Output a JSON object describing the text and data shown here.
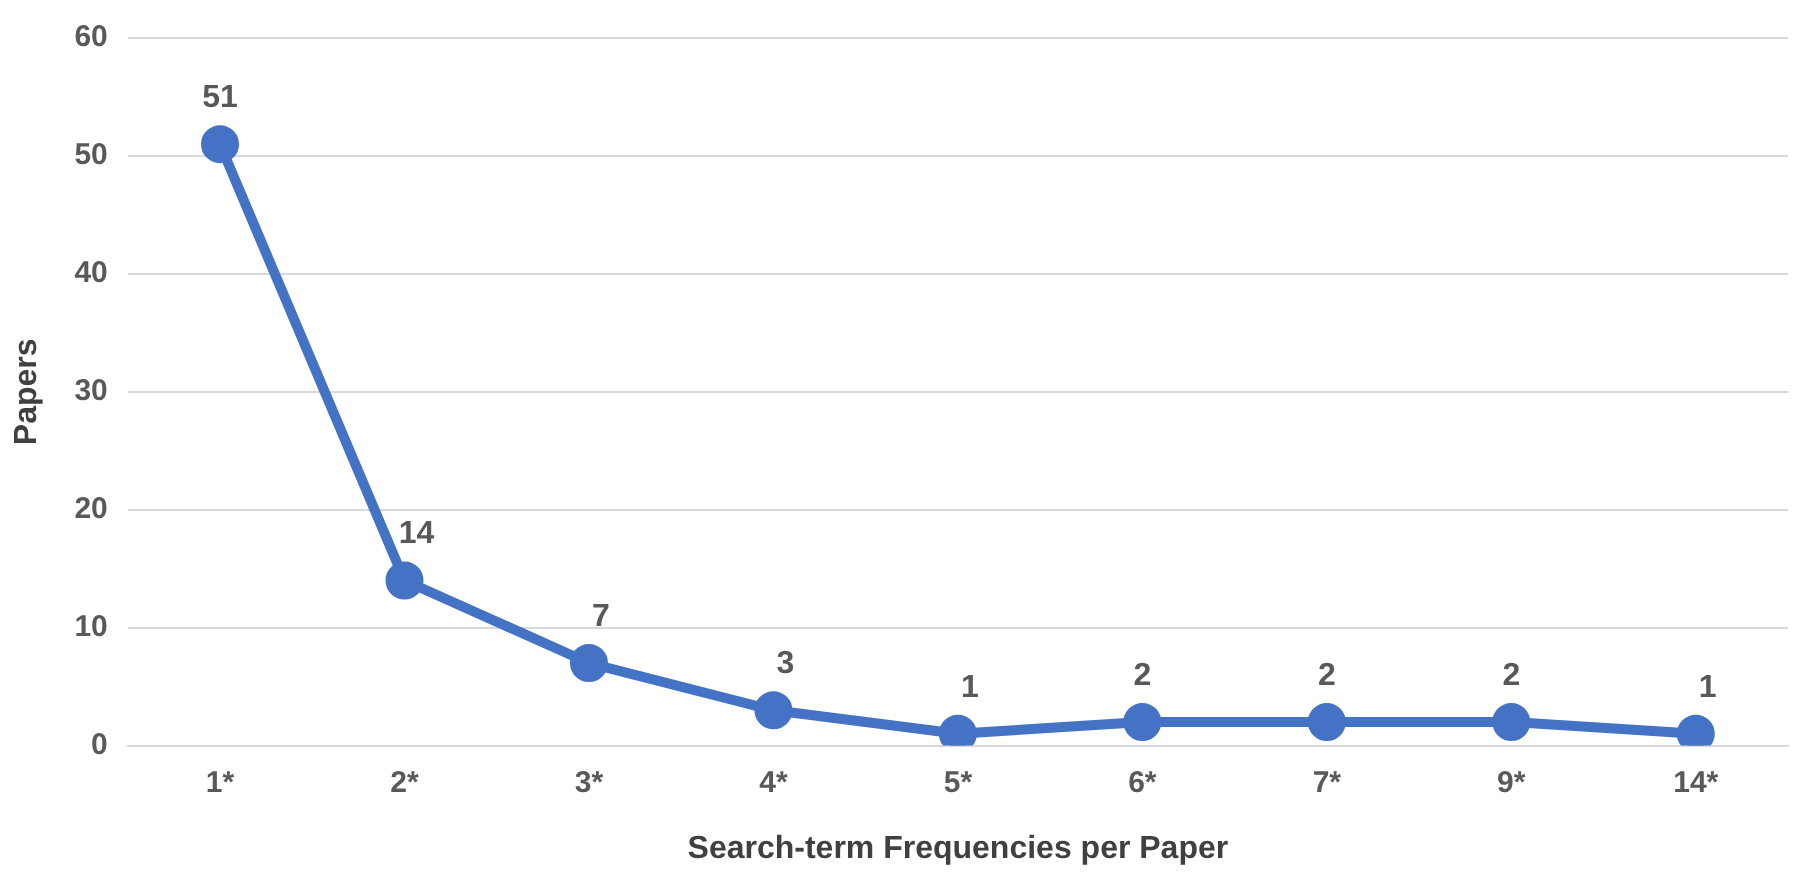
{
  "chart_data": {
    "type": "line",
    "xlabel": "Search-term Frequencies per Paper",
    "ylabel": "Papers",
    "categories": [
      "1*",
      "2*",
      "3*",
      "4*",
      "5*",
      "6*",
      "7*",
      "9*",
      "14*"
    ],
    "series": [
      {
        "color": "#4472c4",
        "values": [
          51,
          14,
          7,
          3,
          1,
          2,
          2,
          2,
          1
        ]
      }
    ],
    "ylim": [
      0,
      60
    ],
    "yticks": [
      0,
      10,
      20,
      30,
      40,
      50,
      60
    ],
    "grid": "y",
    "legend": false,
    "marker": "circle",
    "line_style": "solid",
    "data_labels": true
  }
}
